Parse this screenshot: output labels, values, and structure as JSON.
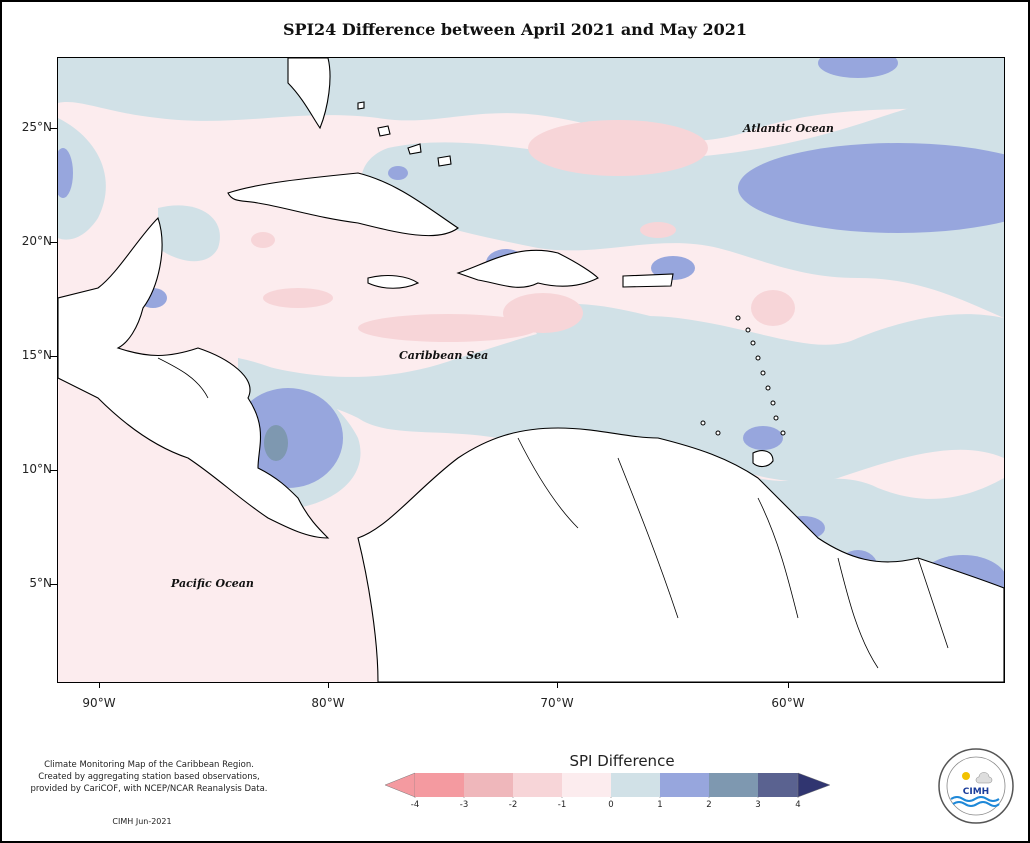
{
  "title": "SPI24 Difference between April 2021 and May 2021",
  "map": {
    "lat_labels": [
      "25°N",
      "20°N",
      "15°N",
      "10°N",
      "5°N"
    ],
    "lon_labels": [
      "90°W",
      "80°W",
      "70°W",
      "60°W"
    ],
    "ocean_labels": {
      "atlantic": "Atlantic Ocean",
      "caribbean": "Caribbean Sea",
      "pacific": "Pacific Ocean"
    }
  },
  "notes": {
    "description_line1": "Climate Monitoring Map of the Caribbean Region.",
    "description_line2": "Created by aggregating station based observations,",
    "description_line3": "provided by CariCOF, with NCEP/NCAR Reanalysis Data.",
    "credit": "CIMH Jun-2021"
  },
  "legend": {
    "title": "SPI Difference",
    "ticks": [
      "-4",
      "-3",
      "-2",
      "-1",
      "0",
      "1",
      "2",
      "3",
      "4"
    ],
    "colors": [
      "#f49aa0",
      "#efb7bb",
      "#f7d5d8",
      "#fcecee",
      "#d1e1e7",
      "#97a6dd",
      "#7e98b0",
      "#5a6290",
      "#303570"
    ]
  },
  "logo": {
    "name": "CIMH"
  }
}
